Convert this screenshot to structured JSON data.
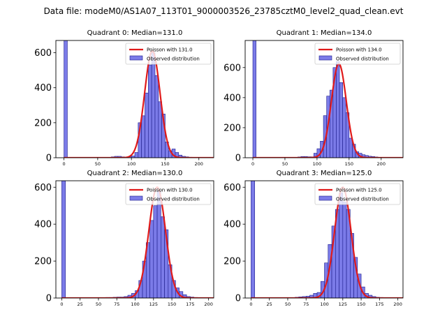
{
  "chart_data": {
    "type": "bar",
    "suptitle": "Data file: modeM0/AS1A07_113T01_9000003526_23785cztM0_level2_quad_clean.evt",
    "colors": {
      "bar_fill": "#7b7be8",
      "bar_edge": "#1c1c8a",
      "curve": "#e01a1a"
    },
    "bin_width": 5,
    "panels": [
      {
        "title": "Quadrant 0: Median=131.0",
        "poisson_label": "Poisson with 131.0",
        "observed_label": "Observed distribution",
        "lambda": 131,
        "peak": 610,
        "xlim": [
          -12,
          222
        ],
        "ylim": [
          0,
          670
        ],
        "xticks": [
          0,
          50,
          100,
          150,
          200
        ],
        "yticks": [
          0,
          200,
          400,
          600
        ],
        "zero_bin": 680,
        "bins": [
          [
            70,
            5
          ],
          [
            75,
            8
          ],
          [
            80,
            8
          ],
          [
            85,
            5
          ],
          [
            90,
            3
          ],
          [
            95,
            5
          ],
          [
            100,
            10
          ],
          [
            105,
            30
          ],
          [
            110,
            200
          ],
          [
            115,
            240
          ],
          [
            120,
            370
          ],
          [
            125,
            530
          ],
          [
            130,
            600
          ],
          [
            135,
            470
          ],
          [
            140,
            320
          ],
          [
            145,
            250
          ],
          [
            150,
            90
          ],
          [
            155,
            40
          ],
          [
            160,
            50
          ],
          [
            165,
            30
          ],
          [
            170,
            15
          ],
          [
            175,
            8
          ],
          [
            180,
            5
          ],
          [
            185,
            3
          ],
          [
            190,
            2
          ],
          [
            195,
            1
          ]
        ]
      },
      {
        "title": "Quadrant 1: Median=134.0",
        "poisson_label": "Poisson with 134.0",
        "observed_label": "Observed distribution",
        "lambda": 134,
        "peak": 625,
        "xlim": [
          -12,
          234
        ],
        "ylim": [
          0,
          780
        ],
        "xticks": [
          0,
          50,
          100,
          150,
          200
        ],
        "yticks": [
          0,
          200,
          400,
          600
        ],
        "zero_bin": 800,
        "bins": [
          [
            70,
            5
          ],
          [
            75,
            8
          ],
          [
            80,
            8
          ],
          [
            85,
            6
          ],
          [
            90,
            6
          ],
          [
            95,
            30
          ],
          [
            100,
            60
          ],
          [
            105,
            110
          ],
          [
            110,
            280
          ],
          [
            115,
            410
          ],
          [
            120,
            450
          ],
          [
            125,
            600
          ],
          [
            130,
            640
          ],
          [
            135,
            500
          ],
          [
            140,
            400
          ],
          [
            145,
            300
          ],
          [
            150,
            130
          ],
          [
            155,
            90
          ],
          [
            160,
            40
          ],
          [
            165,
            30
          ],
          [
            170,
            20
          ],
          [
            175,
            15
          ],
          [
            180,
            10
          ],
          [
            185,
            8
          ],
          [
            190,
            5
          ],
          [
            195,
            3
          ]
        ]
      },
      {
        "title": "Quadrant 2: Median=130.0",
        "poisson_label": "Poisson with 130.0",
        "observed_label": "Observed distribution",
        "lambda": 130,
        "peak": 600,
        "xlim": [
          -8,
          207
        ],
        "ylim": [
          0,
          635
        ],
        "xticks": [
          0,
          25,
          50,
          75,
          100,
          125,
          150,
          175,
          200
        ],
        "yticks": [
          0,
          200,
          400,
          600
        ],
        "zero_bin": 640,
        "bins": [
          [
            60,
            3
          ],
          [
            65,
            3
          ],
          [
            70,
            4
          ],
          [
            75,
            5
          ],
          [
            80,
            5
          ],
          [
            85,
            8
          ],
          [
            90,
            15
          ],
          [
            95,
            25
          ],
          [
            100,
            40
          ],
          [
            105,
            95
          ],
          [
            110,
            200
          ],
          [
            115,
            300
          ],
          [
            120,
            420
          ],
          [
            125,
            500
          ],
          [
            130,
            580
          ],
          [
            135,
            440
          ],
          [
            140,
            370
          ],
          [
            145,
            180
          ],
          [
            150,
            95
          ],
          [
            155,
            55
          ],
          [
            160,
            35
          ],
          [
            165,
            18
          ],
          [
            170,
            8
          ],
          [
            175,
            5
          ],
          [
            180,
            3
          ],
          [
            185,
            2
          ],
          [
            190,
            1
          ],
          [
            195,
            1
          ]
        ]
      },
      {
        "title": "Quadrant 3: Median=125.0",
        "poisson_label": "Poisson with 125.0",
        "observed_label": "Observed distribution",
        "lambda": 125,
        "peak": 600,
        "xlim": [
          -8,
          207
        ],
        "ylim": [
          0,
          635
        ],
        "xticks": [
          0,
          25,
          50,
          75,
          100,
          125,
          150,
          175,
          200
        ],
        "yticks": [
          0,
          200,
          400,
          600
        ],
        "zero_bin": 640,
        "bins": [
          [
            60,
            4
          ],
          [
            65,
            6
          ],
          [
            70,
            8
          ],
          [
            75,
            10
          ],
          [
            80,
            15
          ],
          [
            85,
            25
          ],
          [
            90,
            30
          ],
          [
            95,
            90
          ],
          [
            100,
            190
          ],
          [
            105,
            290
          ],
          [
            110,
            390
          ],
          [
            115,
            480
          ],
          [
            120,
            570
          ],
          [
            125,
            520
          ],
          [
            130,
            480
          ],
          [
            135,
            350
          ],
          [
            140,
            220
          ],
          [
            145,
            130
          ],
          [
            150,
            60
          ],
          [
            155,
            25
          ],
          [
            160,
            15
          ],
          [
            165,
            8
          ],
          [
            170,
            4
          ],
          [
            175,
            3
          ],
          [
            180,
            2
          ],
          [
            185,
            1
          ],
          [
            190,
            1
          ],
          [
            195,
            1
          ]
        ]
      }
    ]
  }
}
